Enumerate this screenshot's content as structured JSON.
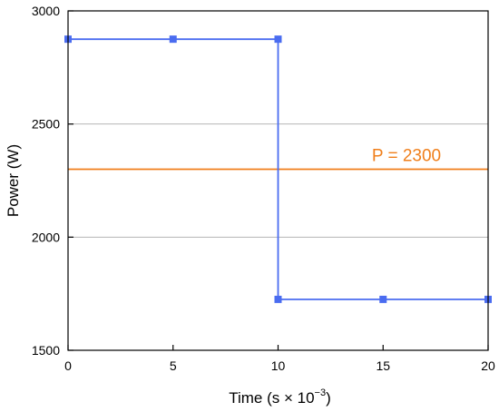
{
  "chart_data": {
    "type": "line",
    "title": "",
    "xlabel": {
      "prefix": "Time (s × 10",
      "superscript": "−3",
      "suffix": ")"
    },
    "ylabel": "Power (W)",
    "xlim": [
      0,
      20
    ],
    "ylim": [
      1500,
      3000
    ],
    "xticks": [
      0,
      5,
      10,
      15,
      20
    ],
    "yticks": [
      1500,
      2000,
      2500,
      3000
    ],
    "grid": {
      "y": true,
      "x": false,
      "y_values": [
        2000,
        2500
      ]
    },
    "series": [
      {
        "color": "#4a6cf0",
        "marker": "square",
        "step": "vertical-at-10",
        "points": [
          {
            "x": 0,
            "y": 2875
          },
          {
            "x": 5,
            "y": 2875
          },
          {
            "x": 10,
            "y": 2875
          },
          {
            "x": 10,
            "y": 1725
          },
          {
            "x": 15,
            "y": 1725
          },
          {
            "x": 20,
            "y": 1725
          }
        ]
      }
    ],
    "reference_line": {
      "y": 2300,
      "label": "P = 2300",
      "color": "#f07f1b"
    }
  }
}
